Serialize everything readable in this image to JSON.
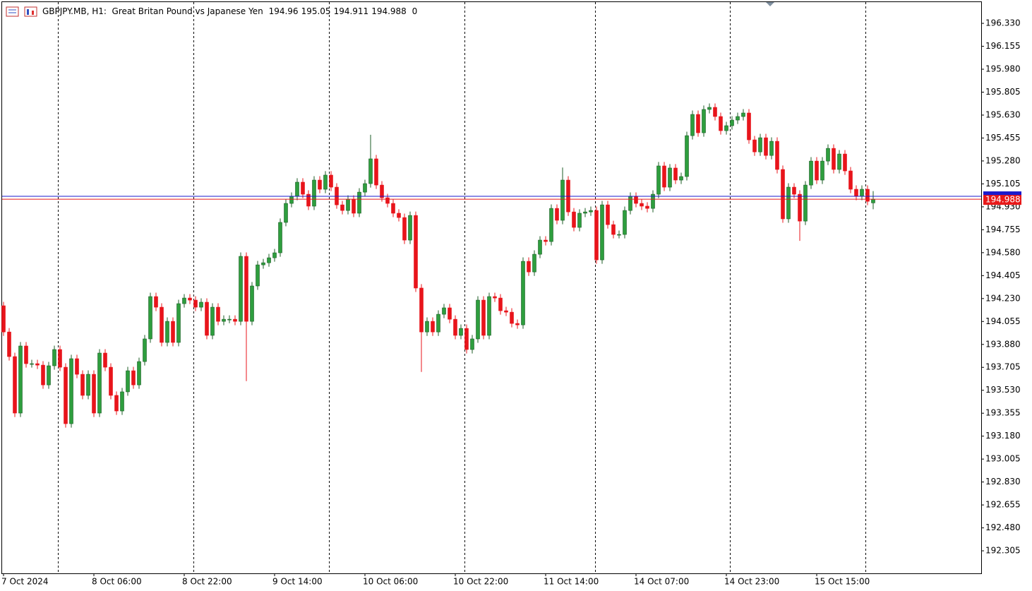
{
  "chart_data": {
    "type": "candlestick",
    "title": "GBPJPY.MB, H1:  Great Britan Pound vs Japanese Yen",
    "spread": 0,
    "up_color": "#2e9e3e",
    "down_color": "#e8141b",
    "categories": [
      "7 Oct 2024",
      null,
      null,
      null,
      null,
      null,
      null,
      null,
      null,
      null,
      null,
      null,
      null,
      null,
      null,
      null,
      "8 Oct 06:00",
      null,
      null,
      null,
      null,
      null,
      null,
      null,
      null,
      null,
      null,
      null,
      null,
      null,
      null,
      null,
      "8 Oct 22:00",
      null,
      null,
      null,
      null,
      null,
      null,
      null,
      null,
      null,
      null,
      null,
      null,
      null,
      null,
      null,
      "9 Oct 14:00",
      null,
      null,
      null,
      null,
      null,
      null,
      null,
      null,
      null,
      null,
      null,
      null,
      null,
      null,
      null,
      "10 Oct 06:00",
      null,
      null,
      null,
      null,
      null,
      null,
      null,
      null,
      null,
      null,
      null,
      null,
      null,
      null,
      null,
      "10 Oct 22:00",
      null,
      null,
      null,
      null,
      null,
      null,
      null,
      null,
      null,
      null,
      null,
      null,
      null,
      null,
      null,
      "11 Oct 14:00",
      null,
      null,
      null,
      null,
      null,
      null,
      null,
      null,
      null,
      null,
      null,
      null,
      null,
      null,
      null,
      "14 Oct 07:00",
      null,
      null,
      null,
      null,
      null,
      null,
      null,
      null,
      null,
      null,
      null,
      null,
      null,
      null,
      null,
      "14 Oct 23:00",
      null,
      null,
      null,
      null,
      null,
      null,
      null,
      null,
      null,
      null,
      null,
      null,
      null,
      null,
      null,
      "15 Oct 15:00",
      null,
      null,
      null,
      null,
      null,
      null,
      null,
      null,
      null,
      null
    ],
    "open": [
      194.175,
      193.975,
      193.787,
      193.356,
      193.868,
      193.733,
      193.733,
      193.722,
      193.571,
      193.717,
      193.841,
      193.706,
      193.275,
      193.771,
      193.652,
      193.491,
      193.652,
      193.356,
      193.814,
      193.706,
      193.491,
      193.372,
      193.518,
      193.679,
      193.571,
      193.749,
      193.922,
      194.245,
      194.164,
      193.895,
      194.056,
      193.895,
      194.191,
      194.234,
      194.218,
      194.164,
      194.202,
      193.949,
      194.164,
      194.056,
      194.072,
      194.072,
      194.056,
      194.552,
      194.056,
      194.326,
      194.487,
      194.503,
      194.541,
      194.579,
      194.811,
      194.956,
      195.01,
      195.118,
      195.026,
      194.935,
      195.134,
      195.064,
      195.172,
      195.08,
      194.945,
      194.902,
      194.988,
      194.881,
      195.042,
      195.107,
      195.296,
      195.096,
      194.999,
      194.956,
      194.881,
      194.848,
      194.676,
      194.864,
      194.31,
      193.975,
      194.056,
      193.975,
      194.11,
      194.159,
      194.072,
      193.949,
      194.002,
      193.841,
      193.922,
      194.218,
      193.949,
      194.245,
      194.234,
      194.137,
      194.126,
      194.04,
      194.029,
      194.514,
      194.433,
      194.568,
      194.676,
      194.665,
      194.918,
      194.827,
      195.134,
      194.891,
      194.773,
      194.881,
      194.891,
      194.902,
      194.525,
      194.945,
      194.794,
      194.719,
      194.719,
      194.902,
      195.01,
      194.956,
      194.935,
      194.918,
      195.026,
      195.242,
      195.08,
      195.226,
      195.134,
      195.161,
      195.473,
      195.635,
      195.495,
      195.673,
      195.689,
      195.619,
      195.511,
      195.549,
      195.592,
      195.619,
      195.646,
      195.441,
      195.349,
      195.457,
      195.322,
      195.43,
      195.215,
      194.838,
      195.08,
      195.026,
      194.821,
      195.096,
      195.279,
      195.134,
      195.279,
      195.376,
      195.215,
      195.333,
      195.204,
      195.064,
      195.01,
      195.064,
      194.96
    ],
    "high": [
      194.205,
      194.005,
      193.817,
      193.898,
      193.898,
      193.763,
      193.763,
      193.752,
      193.747,
      193.871,
      193.871,
      193.736,
      193.801,
      193.801,
      193.682,
      193.682,
      193.682,
      193.844,
      193.844,
      193.736,
      193.521,
      193.548,
      193.709,
      193.709,
      193.779,
      193.952,
      194.275,
      194.275,
      194.194,
      194.086,
      194.086,
      194.221,
      194.264,
      194.264,
      194.248,
      194.232,
      194.232,
      194.194,
      194.194,
      194.102,
      194.102,
      194.102,
      194.582,
      194.582,
      194.356,
      194.517,
      194.533,
      194.571,
      194.609,
      194.841,
      194.986,
      195.04,
      195.148,
      195.148,
      195.056,
      195.164,
      195.164,
      195.202,
      195.202,
      195.11,
      194.975,
      195.018,
      195.018,
      195.072,
      195.137,
      195.48,
      195.326,
      195.126,
      195.029,
      194.986,
      194.911,
      194.878,
      194.894,
      194.894,
      194.34,
      194.086,
      194.086,
      194.14,
      194.189,
      194.189,
      194.102,
      194.032,
      194.032,
      193.952,
      194.248,
      194.248,
      194.275,
      194.275,
      194.264,
      194.167,
      194.156,
      194.07,
      194.544,
      194.544,
      194.598,
      194.706,
      194.706,
      194.948,
      194.948,
      195.23,
      195.164,
      194.921,
      194.911,
      194.921,
      194.932,
      194.932,
      194.975,
      194.975,
      194.824,
      194.749,
      194.932,
      195.04,
      195.04,
      194.986,
      194.965,
      195.056,
      195.272,
      195.272,
      195.256,
      195.256,
      195.191,
      195.503,
      195.665,
      195.665,
      195.703,
      195.719,
      195.719,
      195.649,
      195.579,
      195.622,
      195.649,
      195.676,
      195.676,
      195.471,
      195.487,
      195.487,
      195.46,
      195.46,
      195.245,
      195.11,
      195.11,
      195.056,
      195.126,
      195.309,
      195.309,
      195.309,
      195.406,
      195.406,
      195.363,
      195.363,
      195.234,
      195.094,
      195.094,
      195.094,
      195.05
    ],
    "low": [
      193.945,
      193.757,
      193.326,
      193.326,
      193.703,
      193.703,
      193.692,
      193.541,
      193.541,
      193.687,
      193.676,
      193.245,
      193.245,
      193.622,
      193.461,
      193.461,
      193.326,
      193.326,
      193.676,
      193.461,
      193.342,
      193.342,
      193.488,
      193.541,
      193.541,
      193.719,
      193.892,
      194.134,
      193.865,
      193.865,
      193.865,
      193.865,
      194.161,
      194.188,
      194.134,
      194.134,
      193.919,
      193.919,
      194.026,
      194.026,
      194.042,
      194.026,
      194.026,
      193.6,
      194.026,
      194.296,
      194.457,
      194.473,
      194.511,
      194.549,
      194.781,
      194.926,
      194.98,
      194.996,
      194.905,
      194.905,
      195.034,
      195.034,
      195.05,
      194.915,
      194.872,
      194.872,
      194.851,
      194.851,
      195.012,
      195.077,
      195.066,
      194.969,
      194.926,
      194.851,
      194.818,
      194.646,
      194.646,
      194.28,
      193.67,
      193.945,
      193.945,
      193.945,
      194.08,
      194.042,
      193.919,
      193.919,
      193.811,
      193.811,
      193.892,
      193.919,
      193.919,
      194.204,
      194.107,
      194.096,
      194.01,
      193.999,
      193.999,
      194.403,
      194.403,
      194.538,
      194.635,
      194.635,
      194.797,
      194.797,
      194.861,
      194.743,
      194.743,
      194.851,
      194.861,
      194.495,
      194.495,
      194.764,
      194.689,
      194.689,
      194.689,
      194.872,
      194.926,
      194.905,
      194.888,
      194.888,
      194.996,
      195.05,
      195.05,
      195.104,
      195.104,
      195.131,
      195.443,
      195.465,
      195.465,
      195.643,
      195.589,
      195.481,
      195.481,
      195.519,
      195.562,
      195.589,
      195.411,
      195.319,
      195.319,
      195.292,
      195.292,
      195.185,
      194.808,
      194.808,
      194.996,
      194.67,
      194.791,
      195.066,
      195.104,
      195.104,
      195.249,
      195.185,
      195.185,
      195.174,
      195.034,
      194.98,
      194.98,
      194.942,
      194.911
    ],
    "close": [
      193.975,
      193.787,
      193.356,
      193.868,
      193.733,
      193.733,
      193.722,
      193.571,
      193.717,
      193.841,
      193.706,
      193.275,
      193.771,
      193.652,
      193.491,
      193.652,
      193.356,
      193.814,
      193.706,
      193.491,
      193.372,
      193.518,
      193.679,
      193.571,
      193.749,
      193.922,
      194.245,
      194.164,
      193.895,
      194.056,
      193.895,
      194.191,
      194.234,
      194.218,
      194.164,
      194.202,
      193.949,
      194.164,
      194.056,
      194.072,
      194.072,
      194.056,
      194.552,
      194.056,
      194.326,
      194.487,
      194.503,
      194.541,
      194.579,
      194.811,
      194.956,
      195.01,
      195.118,
      195.026,
      194.935,
      195.134,
      195.064,
      195.172,
      195.08,
      194.945,
      194.902,
      194.988,
      194.881,
      195.042,
      195.107,
      195.296,
      195.096,
      194.999,
      194.956,
      194.881,
      194.848,
      194.676,
      194.864,
      194.31,
      193.975,
      194.056,
      193.975,
      194.11,
      194.159,
      194.072,
      193.949,
      194.002,
      193.841,
      193.922,
      194.218,
      193.949,
      194.245,
      194.234,
      194.137,
      194.126,
      194.04,
      194.029,
      194.514,
      194.433,
      194.568,
      194.676,
      194.665,
      194.918,
      194.827,
      195.134,
      194.891,
      194.773,
      194.881,
      194.891,
      194.902,
      194.525,
      194.945,
      194.794,
      194.719,
      194.719,
      194.902,
      195.01,
      194.956,
      194.935,
      194.918,
      195.026,
      195.242,
      195.08,
      195.226,
      195.134,
      195.161,
      195.473,
      195.635,
      195.495,
      195.673,
      195.689,
      195.619,
      195.511,
      195.549,
      195.592,
      195.619,
      195.646,
      195.441,
      195.349,
      195.457,
      195.322,
      195.43,
      195.215,
      194.838,
      195.08,
      195.026,
      194.821,
      195.096,
      195.279,
      195.134,
      195.279,
      195.376,
      195.215,
      195.333,
      195.204,
      195.064,
      195.01,
      195.064,
      194.972,
      194.988
    ],
    "bid": {
      "value": 194.988,
      "color": "#e81919"
    },
    "ask": {
      "value": 195.01,
      "color": "#1a1acc"
    },
    "ylim": [
      192.133,
      196.492
    ],
    "yticks": [
      {
        "value": 196.33,
        "label": "196.330"
      },
      {
        "value": 196.155,
        "label": "196.155"
      },
      {
        "value": 195.98,
        "label": "195.980"
      },
      {
        "value": 195.805,
        "label": "195.805"
      },
      {
        "value": 195.63,
        "label": "195.630"
      },
      {
        "value": 195.455,
        "label": "195.455"
      },
      {
        "value": 195.28,
        "label": "195.280"
      },
      {
        "value": 195.105,
        "label": "195.105"
      },
      {
        "value": 194.93,
        "label": "194.930"
      },
      {
        "value": 194.755,
        "label": "194.755"
      },
      {
        "value": 194.58,
        "label": "194.580"
      },
      {
        "value": 194.405,
        "label": "194.405"
      },
      {
        "value": 194.23,
        "label": "194.230"
      },
      {
        "value": 194.055,
        "label": "194.055"
      },
      {
        "value": 193.88,
        "label": "193.880"
      },
      {
        "value": 193.705,
        "label": "193.705"
      },
      {
        "value": 193.53,
        "label": "193.530"
      },
      {
        "value": 193.355,
        "label": "193.355"
      },
      {
        "value": 193.18,
        "label": "193.180"
      },
      {
        "value": 193.005,
        "label": "193.005"
      },
      {
        "value": 192.83,
        "label": "192.830"
      },
      {
        "value": 192.655,
        "label": "192.655"
      },
      {
        "value": 192.48,
        "label": "192.480"
      },
      {
        "value": 192.305,
        "label": "192.305"
      }
    ]
  }
}
